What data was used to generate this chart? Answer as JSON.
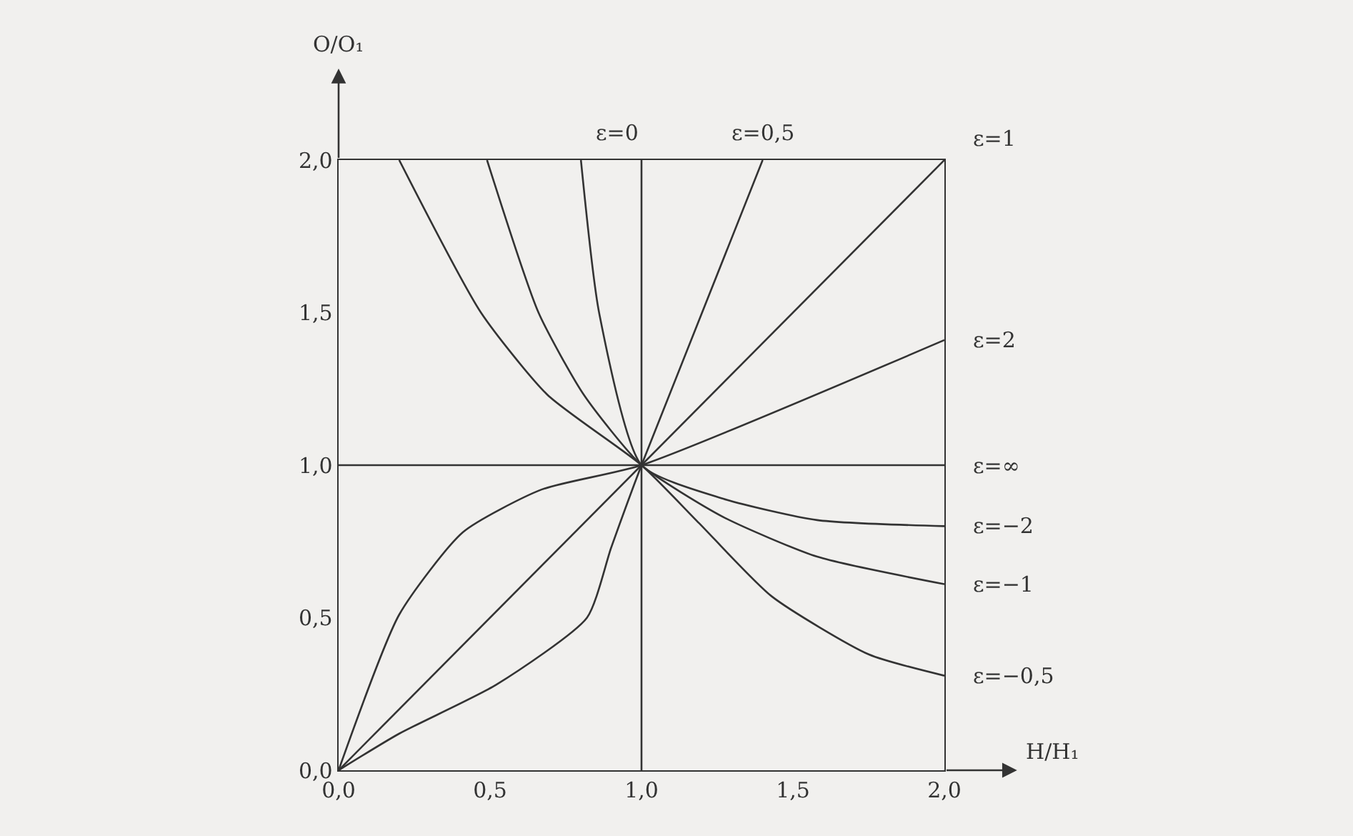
{
  "chart_data": {
    "type": "line",
    "xlabel": "H/H₁",
    "ylabel": "O/O₁",
    "xlim": [
      0,
      2
    ],
    "ylim": [
      0,
      2
    ],
    "xticks": [
      {
        "value": 0,
        "label": "0,0"
      },
      {
        "value": 0.5,
        "label": "0,5"
      },
      {
        "value": 1,
        "label": "1,0"
      },
      {
        "value": 1.5,
        "label": "1,5"
      },
      {
        "value": 2,
        "label": "2,0"
      }
    ],
    "yticks": [
      {
        "value": 0,
        "label": "0,0"
      },
      {
        "value": 0.5,
        "label": "0,5"
      },
      {
        "value": 1,
        "label": "1,0"
      },
      {
        "value": 1.5,
        "label": "1,5"
      },
      {
        "value": 2,
        "label": "2,0"
      }
    ],
    "grid": false,
    "legend": false,
    "marker": "none",
    "line_style": "solid",
    "series": [
      {
        "name": "ε=0",
        "color": "#333333",
        "x": [
          1,
          1
        ],
        "values": [
          0,
          2
        ]
      },
      {
        "name": "ε=0,5",
        "color": "#333333",
        "x": [
          0,
          0.2,
          0.52,
          0.82,
          0.9,
          1,
          1.4
        ],
        "values": [
          0,
          0.12,
          0.28,
          0.5,
          0.73,
          1,
          2
        ]
      },
      {
        "name": "ε=1",
        "color": "#333333",
        "x": [
          0,
          2
        ],
        "values": [
          0,
          2
        ]
      },
      {
        "name": "ε=2",
        "color": "#333333",
        "x": [
          0,
          0.2,
          0.41,
          0.67,
          1,
          2
        ],
        "values": [
          0,
          0.51,
          0.78,
          0.92,
          1,
          1.41
        ]
      },
      {
        "name": "ε=∞",
        "color": "#333333",
        "x": [
          0,
          2
        ],
        "values": [
          1,
          1
        ]
      },
      {
        "name": "ε=−2",
        "color": "#333333",
        "x": [
          0.8,
          0.86,
          1,
          1.27,
          1.58,
          2
        ],
        "values": [
          2,
          1.5,
          1,
          0.89,
          0.82,
          0.8
        ]
      },
      {
        "name": "ε=−1",
        "color": "#333333",
        "x": [
          0.49,
          0.66,
          0.81,
          1,
          1.27,
          1.58,
          2
        ],
        "values": [
          2,
          1.5,
          1.23,
          1,
          0.83,
          0.7,
          0.61
        ]
      },
      {
        "name": "ε=−0,5",
        "color": "#333333",
        "x": [
          0.2,
          0.47,
          0.69,
          1,
          1.19,
          1.43,
          1.75,
          2
        ],
        "values": [
          2,
          1.5,
          1.23,
          1,
          0.81,
          0.57,
          0.38,
          0.31
        ]
      }
    ]
  }
}
